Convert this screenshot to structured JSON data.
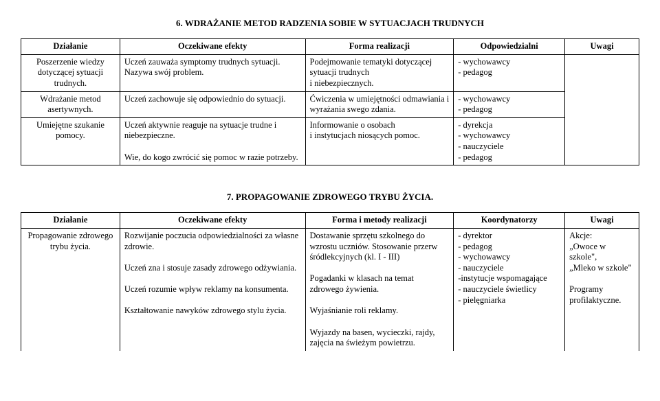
{
  "section6": {
    "title": "6. WDRAŻANIE METOD RADZENIA SOBIE W SYTUACJACH TRUDNYCH",
    "headers": {
      "c1": "Działanie",
      "c2": "Oczekiwane efekty",
      "c3": "Forma realizacji",
      "c4": "Odpowiedzialni",
      "c5": "Uwagi"
    },
    "rows": [
      {
        "c1": "Poszerzenie wiedzy dotyczącej sytuacji trudnych.",
        "c2": "Uczeń zauważa symptomy trudnych sytuacji.\nNazywa swój problem.",
        "c3": "Podejmowanie tematyki dotyczącej sytuacji trudnych\ni niebezpiecznych.",
        "c4": "- wychowawcy\n- pedagog",
        "c5": ""
      },
      {
        "c1": "Wdrażanie metod asertywnych.",
        "c2": "Uczeń zachowuje się odpowiednio do sytuacji.",
        "c3": "Ćwiczenia w umiejętności odmawiania i wyrażania swego zdania.",
        "c4": "- wychowawcy\n- pedagog",
        "c5": ""
      },
      {
        "c1": "Umiejętne szukanie pomocy.",
        "c2": "Uczeń aktywnie reaguje na sytuacje trudne i niebezpieczne.\n\nWie, do kogo zwrócić się pomoc w razie potrzeby.",
        "c3": "Informowanie o osobach\ni instytucjach niosących pomoc.",
        "c4": "- dyrekcja\n- wychowawcy\n- nauczyciele\n- pedagog",
        "c5": ""
      }
    ]
  },
  "section7": {
    "title": "7. PROPAGOWANIE  ZDROWEGO TRYBU ŻYCIA.",
    "headers": {
      "c1": "Działanie",
      "c2": "Oczekiwane efekty",
      "c3": "Forma i metody realizacji",
      "c4": "Koordynatorzy",
      "c5": "Uwagi"
    },
    "rows": [
      {
        "c1": "Propagowanie zdrowego trybu życia.",
        "c2": "Rozwijanie poczucia odpowiedzialności za własne zdrowie.\n\nUczeń zna i stosuje zasady zdrowego odżywiania.\n\nUczeń rozumie wpływ reklamy na konsumenta.\n\nKształtowanie nawyków zdrowego stylu życia.",
        "c3": "Dostawanie sprzętu szkolnego do wzrostu uczniów. Stosowanie przerw śródlekcyjnych (kl. I - III)\n\nPogadanki w klasach na temat zdrowego żywienia.\n\nWyjaśnianie roli reklamy.\n\nWyjazdy na basen, wycieczki, rajdy, zajęcia na świeżym powietrzu.",
        "c4": "- dyrektor\n- pedagog\n- wychowawcy\n- nauczyciele\n -instytucje wspomagające\n- nauczyciele świetlicy\n- pielęgniarka",
        "c5": "Akcje:\n„Owoce w szkole\",\n„Mleko w szkole\"\n\nProgramy profilaktyczne."
      }
    ]
  }
}
